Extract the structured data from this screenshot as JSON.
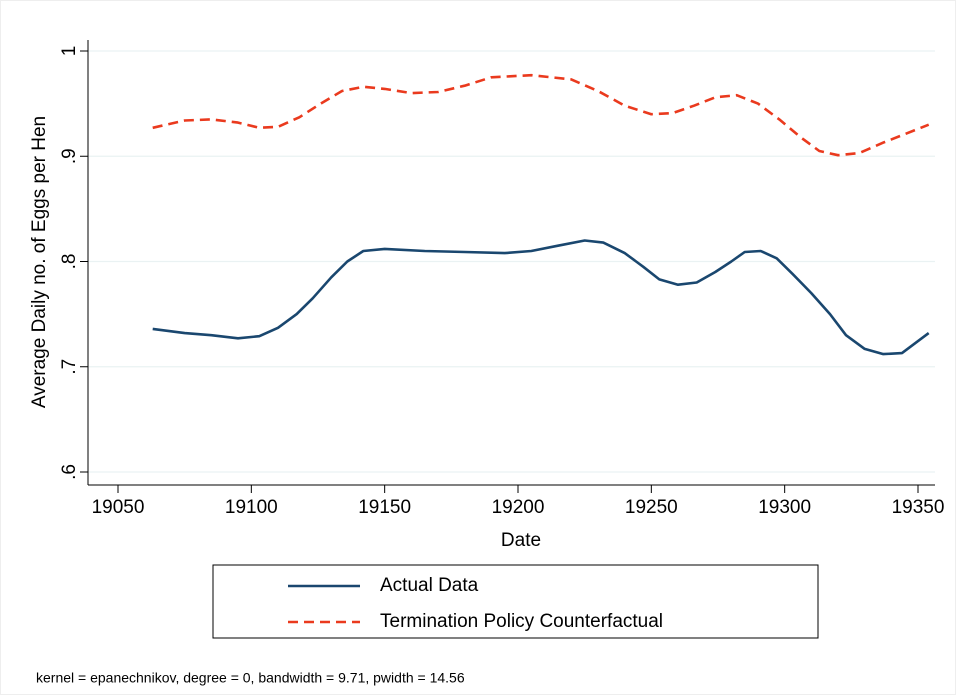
{
  "chart_data": {
    "type": "line",
    "x_label": "Date",
    "y_label": "Average Daily no. of Eggs per Hen",
    "note": "kernel = epanechnikov, degree = 0, bandwidth = 9.71, pwidth = 14.56",
    "xlim": [
      19050,
      19350
    ],
    "xticks": [
      19050,
      19100,
      19150,
      19200,
      19250,
      19300,
      19350
    ],
    "ylim": [
      0.6,
      1
    ],
    "yticks": [
      {
        "value": 0.6,
        "label": ".6"
      },
      {
        "value": 0.7,
        "label": ".7"
      },
      {
        "value": 0.8,
        "label": ".8"
      },
      {
        "value": 0.9,
        "label": ".9"
      },
      {
        "value": 1,
        "label": "1"
      }
    ],
    "grid": true,
    "legend_position": "bottom",
    "series": [
      {
        "name": "Actual Data",
        "color": "#1a476f",
        "dash": "solid",
        "x": [
          19063,
          19075,
          19085,
          19095,
          19103,
          19110,
          19117,
          19123,
          19130,
          19136,
          19142,
          19150,
          19165,
          19180,
          19195,
          19205,
          19215,
          19225,
          19232,
          19240,
          19247,
          19253,
          19260,
          19267,
          19274,
          19280,
          19285,
          19291,
          19297,
          19303,
          19310,
          19317,
          19323,
          19330,
          19337,
          19344,
          19354
        ],
        "values": [
          0.736,
          0.732,
          0.73,
          0.727,
          0.729,
          0.737,
          0.75,
          0.765,
          0.785,
          0.8,
          0.81,
          0.812,
          0.81,
          0.809,
          0.808,
          0.81,
          0.815,
          0.82,
          0.818,
          0.808,
          0.795,
          0.783,
          0.778,
          0.78,
          0.79,
          0.8,
          0.809,
          0.81,
          0.803,
          0.788,
          0.77,
          0.75,
          0.73,
          0.717,
          0.712,
          0.713,
          0.732
        ]
      },
      {
        "name": "Termination Policy Counterfactual",
        "color": "#ea3a1e",
        "dash": "dashed",
        "x": [
          19063,
          19075,
          19085,
          19095,
          19103,
          19110,
          19118,
          19126,
          19134,
          19142,
          19150,
          19160,
          19170,
          19180,
          19190,
          19205,
          19220,
          19230,
          19240,
          19250,
          19258,
          19266,
          19274,
          19282,
          19290,
          19298,
          19306,
          19313,
          19320,
          19328,
          19337,
          19354
        ],
        "values": [
          0.927,
          0.934,
          0.935,
          0.932,
          0.927,
          0.928,
          0.937,
          0.95,
          0.962,
          0.966,
          0.964,
          0.96,
          0.961,
          0.967,
          0.975,
          0.977,
          0.973,
          0.962,
          0.948,
          0.94,
          0.941,
          0.948,
          0.956,
          0.958,
          0.95,
          0.935,
          0.918,
          0.905,
          0.901,
          0.903,
          0.913,
          0.93
        ]
      }
    ]
  }
}
